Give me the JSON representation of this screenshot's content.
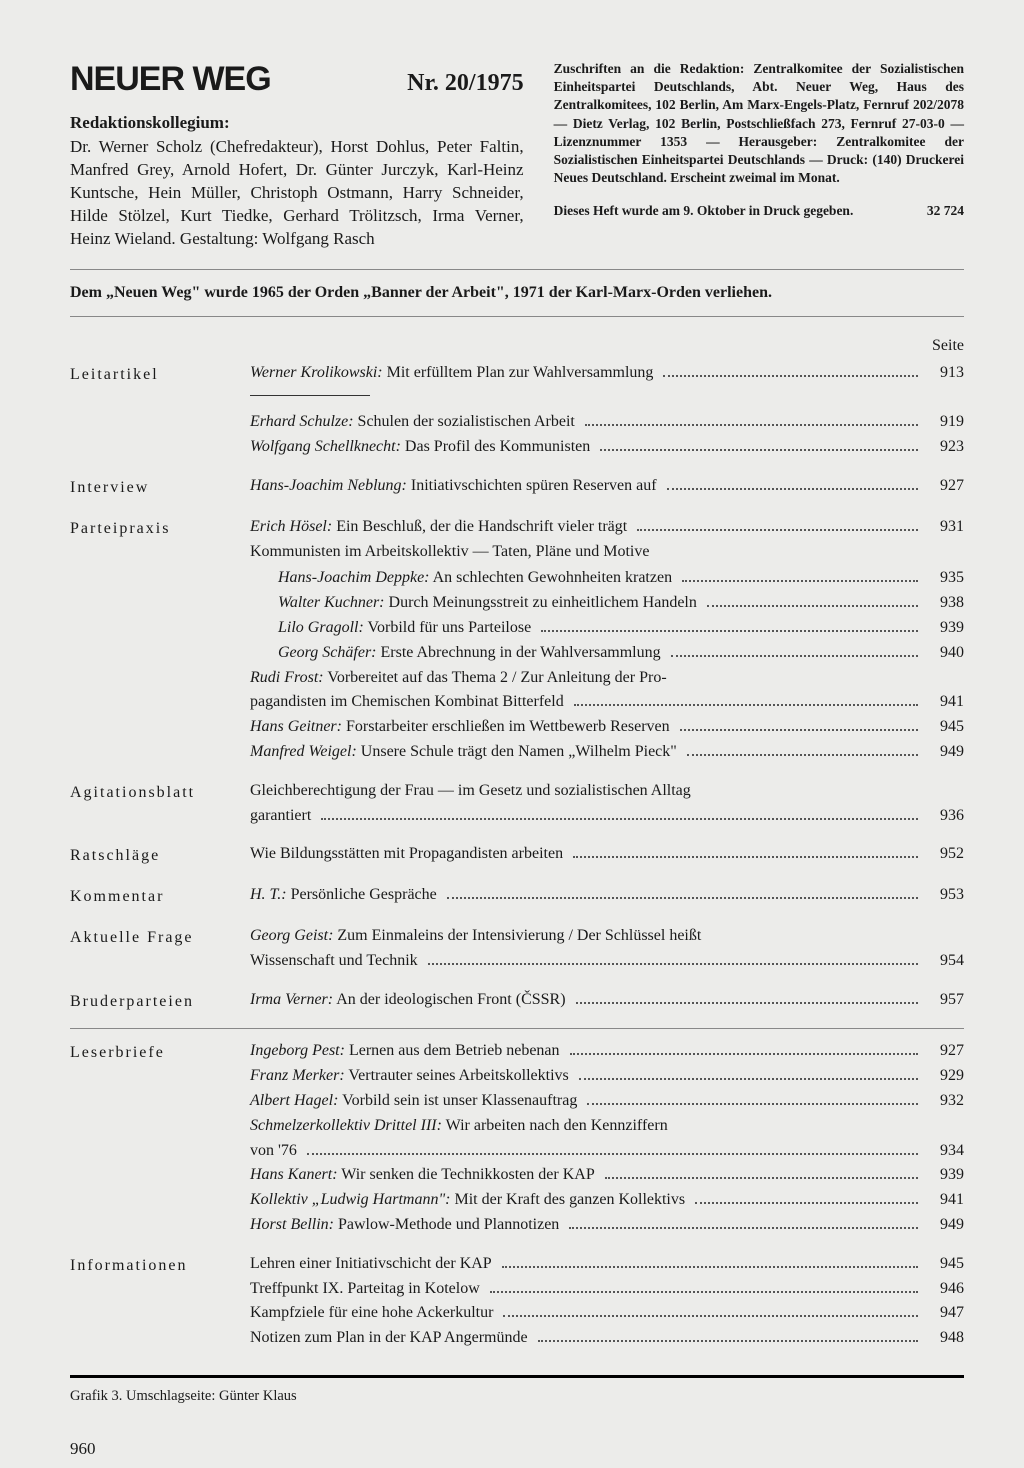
{
  "masthead": "NEUER WEG",
  "issue": "Nr. 20/1975",
  "redaktion_label": "Redaktionskollegium:",
  "redaktion_body": "Dr. Werner Scholz (Chefredakteur), Horst Dohlus, Peter Faltin, Manfred Grey, Arnold Hofert, Dr. Günter Jurczyk, Karl-Heinz Kuntsche, Hein Müller, Christoph Ostmann, Harry Schneider, Hilde Stölzel, Kurt Tiedke, Gerhard Trölitzsch, Irma Verner, Heinz Wieland.        Gestaltung: Wolfgang Rasch",
  "imprint": "Zuschriften an die Redaktion: Zentralkomitee der Sozialistischen Einheitspartei Deutschlands, Abt. Neuer Weg, Haus des Zentralkomitees, 102 Berlin, Am Marx-Engels-Platz, Fernruf 202/2078 — Dietz Verlag, 102 Berlin, Postschließfach 273, Fernruf 27-03-0 — Lizenznummer 1353 — Herausgeber: Zentralkomitee der Sozialistischen Einheitspartei Deutschlands — Druck: (140) Druckerei Neues Deutschland. Erscheint zweimal im Monat.",
  "print_note": "Dieses Heft wurde am 9. Oktober in Druck gegeben.",
  "print_number": "32 724",
  "award": "Dem „Neuen Weg\" wurde 1965 der Orden „Banner der Arbeit\", 1971 der Karl-Marx-Orden verliehen.",
  "seite_label": "Seite",
  "sections": {
    "leitartikel": "Leitartikel",
    "interview": "Interview",
    "parteipraxis": "Parteipraxis",
    "agitationsblatt": "Agitationsblatt",
    "ratschlaege": "Ratschläge",
    "kommentar": "Kommentar",
    "aktuelle_frage": "Aktuelle Frage",
    "bruderparteien": "Bruderparteien",
    "leserbriefe": "Leserbriefe",
    "informationen": "Informationen"
  },
  "entries": {
    "e1": {
      "author": "Werner Krolikowski:",
      "title": " Mit erfülltem Plan zur Wahlversammlung",
      "page": "913"
    },
    "e2": {
      "author": "Erhard Schulze:",
      "title": " Schulen der sozialistischen Arbeit",
      "page": "919"
    },
    "e3": {
      "author": "Wolfgang Schellknecht:",
      "title": " Das Profil des Kommunisten",
      "page": "923"
    },
    "e4": {
      "author": "Hans-Joachim Neblung:",
      "title": " Initiativschichten spüren Reserven auf",
      "page": "927"
    },
    "e5": {
      "author": "Erich Hösel:",
      "title": " Ein Beschluß, der die Handschrift vieler trägt",
      "page": "931"
    },
    "e5b": {
      "title": "Kommunisten im Arbeitskollektiv — Taten, Pläne und Motive"
    },
    "e6": {
      "author": "Hans-Joachim Deppke:",
      "title": " An schlechten Gewohnheiten kratzen",
      "page": "935"
    },
    "e7": {
      "author": "Walter Kuchner:",
      "title": " Durch Meinungsstreit zu einheitlichem Handeln",
      "page": "938"
    },
    "e8": {
      "author": "Lilo Gragoll:",
      "title": " Vorbild für uns Parteilose",
      "page": "939"
    },
    "e9": {
      "author": "Georg Schäfer:",
      "title": " Erste Abrechnung in der Wahlversammlung",
      "page": "940"
    },
    "e10a": {
      "author": "Rudi Frost:",
      "title": " Vorbereitet auf das Thema 2 / Zur Anleitung der Pro-"
    },
    "e10b": {
      "title": "pagandisten im Chemischen Kombinat Bitterfeld",
      "page": "941"
    },
    "e11": {
      "author": "Hans Geitner:",
      "title": " Forstarbeiter erschließen im Wettbewerb Reserven",
      "page": "945"
    },
    "e12": {
      "author": "Manfred Weigel:",
      "title": " Unsere Schule trägt den Namen „Wilhelm Pieck\"",
      "page": "949"
    },
    "e13a": {
      "title": "Gleichberechtigung der Frau — im Gesetz und sozialistischen Alltag"
    },
    "e13b": {
      "title": "garantiert",
      "page": "936"
    },
    "e14": {
      "title": "Wie Bildungsstätten mit Propagandisten arbeiten",
      "page": "952"
    },
    "e15": {
      "author": "H. T.:",
      "title": " Persönliche Gespräche",
      "page": "953"
    },
    "e16a": {
      "author": "Georg Geist:",
      "title": " Zum Einmaleins der Intensivierung / Der Schlüssel heißt"
    },
    "e16b": {
      "title": "Wissenschaft und Technik",
      "page": "954"
    },
    "e17": {
      "author": "Irma Verner:",
      "title": " An der ideologischen Front (ČSSR)",
      "page": "957"
    },
    "l1": {
      "author": "Ingeborg Pest:",
      "title": " Lernen aus dem Betrieb nebenan",
      "page": "927"
    },
    "l2": {
      "author": "Franz Merker:",
      "title": " Vertrauter seines Arbeitskollektivs",
      "page": "929"
    },
    "l3": {
      "author": "Albert Hagel:",
      "title": " Vorbild sein ist unser Klassenauftrag",
      "page": "932"
    },
    "l4a": {
      "author": "Schmelzerkollektiv Drittel III:",
      "title": " Wir arbeiten nach den Kennziffern"
    },
    "l4b": {
      "title": "von '76",
      "page": "934"
    },
    "l5": {
      "author": "Hans Kanert:",
      "title": " Wir senken die Technikkosten der KAP",
      "page": "939"
    },
    "l6": {
      "author": "Kollektiv „Ludwig Hartmann\":",
      "title": " Mit der Kraft des ganzen Kollektivs",
      "page": "941"
    },
    "l7": {
      "author": "Horst Bellin:",
      "title": " Pawlow-Methode und Plannotizen",
      "page": "949"
    },
    "i1": {
      "title": "Lehren einer Initiativschicht der KAP",
      "page": "945"
    },
    "i2": {
      "title": "Treffpunkt IX. Parteitag in Kotelow",
      "page": "946"
    },
    "i3": {
      "title": "Kampfziele für eine hohe Ackerkultur",
      "page": "947"
    },
    "i4": {
      "title": "Notizen zum Plan in der KAP Angermünde",
      "page": "948"
    }
  },
  "grafik": "Grafik 3. Umschlagseite: Günter Klaus",
  "pagenum": "960"
}
